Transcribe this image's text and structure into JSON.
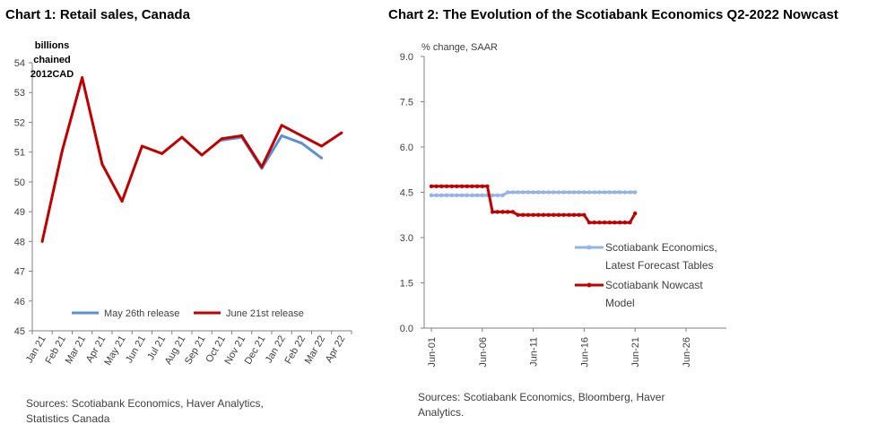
{
  "chart_data": [
    {
      "type": "line",
      "title": "Chart 1: Retail sales, Canada",
      "ylabel": "billions chained 2012CAD",
      "ylabel_lines": [
        "billions",
        "chained",
        "2012CAD"
      ],
      "ylim": [
        45,
        54
      ],
      "yticks": [
        "45",
        "46",
        "47",
        "48",
        "49",
        "50",
        "51",
        "52",
        "53",
        "54"
      ],
      "categories": [
        "Jan 21",
        "Feb 21",
        "Mar 21",
        "Apr 21",
        "May 21",
        "Jun 21",
        "Jul 21",
        "Aug 21",
        "Sep 21",
        "Oct 21",
        "Nov 21",
        "Dec 21",
        "Jan 22",
        "Feb 22",
        "Mar 22",
        "Apr 22"
      ],
      "series": [
        {
          "name": "May 26th release",
          "color": "#5b8fd6",
          "values": [
            null,
            null,
            null,
            null,
            null,
            null,
            null,
            null,
            null,
            51.4,
            51.5,
            50.45,
            51.55,
            51.3,
            50.8,
            null
          ]
        },
        {
          "name": "June 21st release",
          "color": "#c00000",
          "values": [
            48.0,
            51.05,
            53.5,
            50.6,
            49.35,
            51.2,
            50.95,
            51.5,
            50.9,
            51.45,
            51.55,
            50.5,
            51.9,
            51.55,
            51.2,
            51.65
          ]
        }
      ],
      "legend_position": "bottom",
      "grid": false,
      "source": [
        "Sources: Scotiabank Economics, Haver Analytics,",
        "Statistics Canada"
      ]
    },
    {
      "type": "line",
      "title": "Chart 2: The Evolution of the Scotiabank Economics Q2-2022 Nowcast",
      "ylabel": "% change, SAAR",
      "ylim": [
        0,
        9
      ],
      "yticks": [
        "0.0",
        "1.5",
        "3.0",
        "4.5",
        "6.0",
        "7.5",
        "9.0"
      ],
      "x_ticks": [
        "Jun-01",
        "Jun-06",
        "Jun-11",
        "Jun-16",
        "Jun-21",
        "Jun-26"
      ],
      "series": [
        {
          "name": "Scotiabank Economics, Latest Forecast Tables",
          "name_lines": [
            "Scotiabank Economics,",
            "Latest Forecast Tables"
          ],
          "color": "#95b3e6",
          "values": [
            4.4,
            4.4,
            4.4,
            4.4,
            4.4,
            4.4,
            4.4,
            4.4,
            4.4,
            4.4,
            4.4,
            4.4,
            4.4,
            4.4,
            4.4,
            4.5,
            4.5,
            4.5,
            4.5,
            4.5,
            4.5,
            4.5,
            4.5,
            4.5,
            4.5,
            4.5,
            4.5,
            4.5,
            4.5,
            4.5,
            4.5,
            4.5,
            4.5,
            4.5,
            4.5,
            4.5,
            4.5,
            4.5,
            4.5,
            4.5,
            4.5
          ]
        },
        {
          "name": "Scotiabank Nowcast Model",
          "name_lines": [
            "Scotiabank Nowcast",
            "Model"
          ],
          "color": "#c00000",
          "values": [
            4.7,
            4.7,
            4.7,
            4.7,
            4.7,
            4.7,
            4.7,
            4.7,
            4.7,
            4.7,
            4.7,
            4.7,
            3.85,
            3.85,
            3.85,
            3.85,
            3.85,
            3.75,
            3.75,
            3.75,
            3.75,
            3.75,
            3.75,
            3.75,
            3.75,
            3.75,
            3.75,
            3.75,
            3.75,
            3.75,
            3.75,
            3.5,
            3.5,
            3.5,
            3.5,
            3.5,
            3.5,
            3.5,
            3.5,
            3.5,
            3.8
          ]
        }
      ],
      "legend_position": "right",
      "grid": false,
      "source": [
        "Sources: Scotiabank Economics, Bloomberg, Haver",
        "Analytics."
      ]
    }
  ]
}
